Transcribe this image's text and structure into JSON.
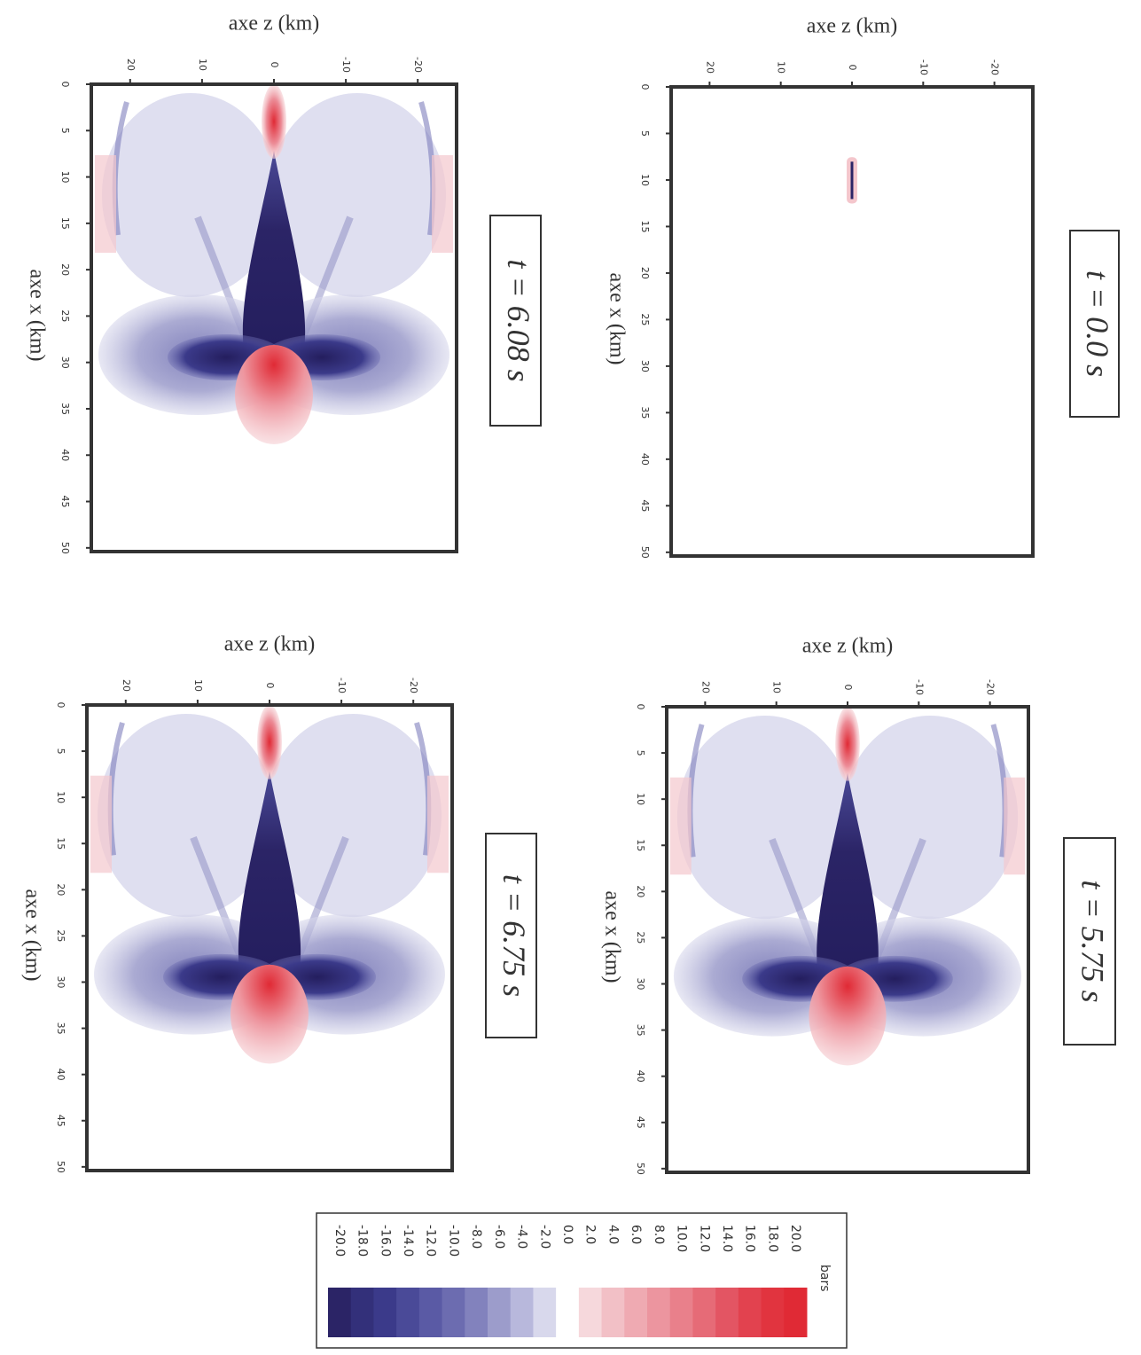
{
  "chart_data": [
    {
      "type": "heatmap",
      "xlabel": "axe z (km)",
      "ylabel": "axe x (km)",
      "annotation": "t = 6.08 s",
      "xlim": [
        25.4,
        -25.4
      ],
      "xticks": [
        20,
        10,
        0,
        -10,
        -20
      ],
      "ylim": [
        0,
        50.4
      ],
      "yticks": [
        0,
        5,
        10,
        15,
        20,
        25,
        30,
        35,
        40,
        45,
        50
      ]
    },
    {
      "type": "heatmap",
      "xlabel": "axe z (km)",
      "ylabel": "axe x (km)",
      "annotation": "t = 0.0 s",
      "xlim": [
        25.4,
        -25.4
      ],
      "xticks": [
        20,
        10,
        0,
        -10,
        -20
      ],
      "ylim": [
        0,
        50.4
      ],
      "yticks": [
        0,
        5,
        10,
        15,
        20,
        25,
        30,
        35,
        40,
        45,
        50
      ]
    },
    {
      "type": "heatmap",
      "xlabel": "axe z (km)",
      "ylabel": "axe x (km)",
      "annotation": "t = 6.75 s",
      "xlim": [
        25.4,
        -25.4
      ],
      "xticks": [
        20,
        10,
        0,
        -10,
        -20
      ],
      "ylim": [
        0,
        50.4
      ],
      "yticks": [
        0,
        5,
        10,
        15,
        20,
        25,
        30,
        35,
        40,
        45,
        50
      ]
    },
    {
      "type": "heatmap",
      "xlabel": "axe z (km)",
      "ylabel": "axe x (km)",
      "annotation": "t = 5.75 s",
      "xlim": [
        25.4,
        -25.4
      ],
      "xticks": [
        20,
        10,
        0,
        -10,
        -20
      ],
      "ylim": [
        0,
        50.4
      ],
      "yticks": [
        0,
        5,
        10,
        15,
        20,
        25,
        30,
        35,
        40,
        45,
        50
      ]
    },
    {
      "type": "colorbar",
      "label": "bars",
      "ticks": [
        {
          "value": -20,
          "label": "-20.0"
        },
        {
          "value": -18,
          "label": "-18.0"
        },
        {
          "value": -16,
          "label": "-16.0"
        },
        {
          "value": -14,
          "label": "-14.0"
        },
        {
          "value": -12,
          "label": "-12.0"
        },
        {
          "value": -10,
          "label": "-10.0"
        },
        {
          "value": -8,
          "label": "-8.0"
        },
        {
          "value": -6,
          "label": "-6.0"
        },
        {
          "value": -4,
          "label": "-4.0"
        },
        {
          "value": -2,
          "label": "-2.0"
        },
        {
          "value": 0,
          "label": "0.0"
        },
        {
          "value": 2,
          "label": "2.0"
        },
        {
          "value": 4,
          "label": "4.0"
        },
        {
          "value": 6,
          "label": "6.0"
        },
        {
          "value": 8,
          "label": "8.0"
        },
        {
          "value": 10,
          "label": "10.0"
        },
        {
          "value": 12,
          "label": "12.0"
        },
        {
          "value": 14,
          "label": "14.0"
        },
        {
          "value": 16,
          "label": "16.0"
        },
        {
          "value": 18,
          "label": "18.0"
        },
        {
          "value": 20,
          "label": "20.0"
        }
      ],
      "colors": [
        "#2b2466",
        "#33307a",
        "#3b3a8a",
        "#4a4a98",
        "#5a5aa5",
        "#6c6cb0",
        "#8282bd",
        "#9c9ccb",
        "#b8b8dc",
        "#d8d8ec",
        "#ffffff",
        "#f6d8dc",
        "#f2c0c6",
        "#efaab2",
        "#ec959f",
        "#e9808b",
        "#e66b77",
        "#e35563",
        "#e2424f",
        "#e1343f",
        "#e02a35"
      ]
    }
  ]
}
